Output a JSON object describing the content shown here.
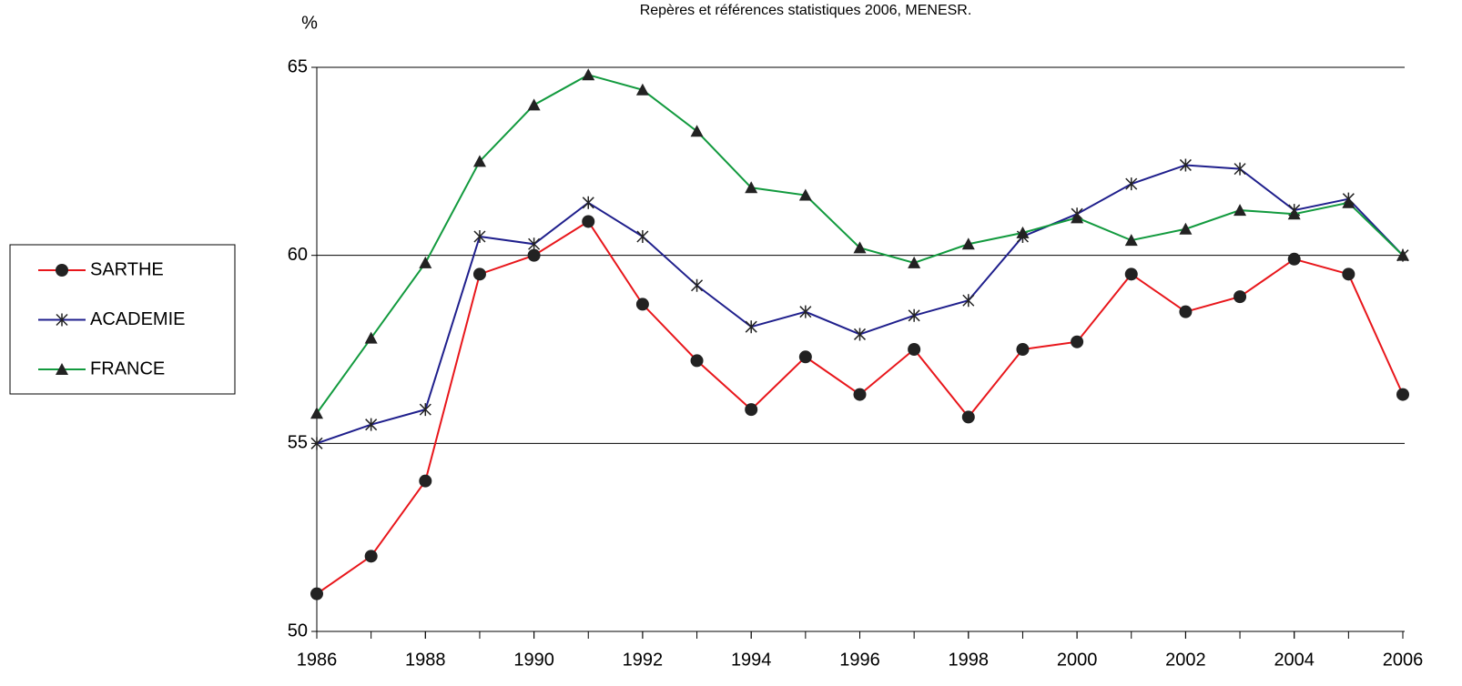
{
  "chart_data": {
    "type": "line",
    "subtitle": "Repères et références statistiques 2006, MENESR.",
    "y_label": "%",
    "x": [
      1986,
      1987,
      1988,
      1989,
      1990,
      1991,
      1992,
      1993,
      1994,
      1995,
      1996,
      1997,
      1998,
      1999,
      2000,
      2001,
      2002,
      2003,
      2004,
      2005,
      2006
    ],
    "xlim": [
      1986,
      2006
    ],
    "xticks": [
      1986,
      1988,
      1990,
      1992,
      1994,
      1996,
      1998,
      2000,
      2002,
      2004,
      2006
    ],
    "ylim": [
      50,
      65
    ],
    "yticks": [
      50,
      55,
      60,
      65
    ],
    "grid": true,
    "legend": "left",
    "series": [
      {
        "name": "SARTHE",
        "color": "#e8161b",
        "marker": "circle",
        "values": [
          51.0,
          52.0,
          54.0,
          59.5,
          60.0,
          60.9,
          58.7,
          57.2,
          55.9,
          57.3,
          56.3,
          57.5,
          55.7,
          57.5,
          57.7,
          59.5,
          58.5,
          58.9,
          59.9,
          59.5,
          56.3
        ]
      },
      {
        "name": "ACADEMIE",
        "color": "#1f1f8c",
        "marker": "star",
        "values": [
          55.0,
          55.5,
          55.9,
          60.5,
          60.3,
          61.4,
          60.5,
          59.2,
          58.1,
          58.5,
          57.9,
          58.4,
          58.8,
          60.5,
          61.1,
          61.9,
          62.4,
          62.3,
          61.2,
          61.5,
          60.0
        ]
      },
      {
        "name": "FRANCE",
        "color": "#129a3e",
        "marker": "triangle",
        "values": [
          55.8,
          57.8,
          59.8,
          62.5,
          64.0,
          64.8,
          64.4,
          63.3,
          61.8,
          61.6,
          60.2,
          59.8,
          60.3,
          60.6,
          61.0,
          60.4,
          60.7,
          61.2,
          61.1,
          61.4,
          60.0
        ]
      }
    ]
  }
}
